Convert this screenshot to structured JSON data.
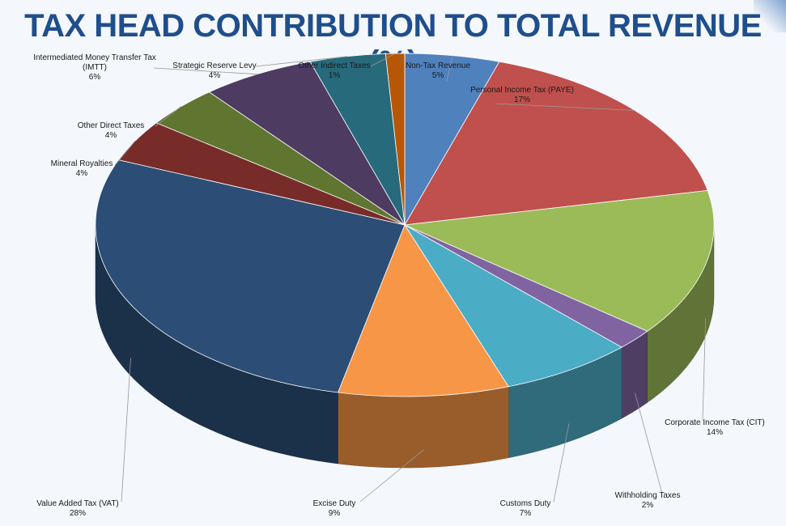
{
  "chart_data": {
    "type": "pie",
    "title": "TAX HEAD CONTRIBUTION TO TOTAL REVENUE (%)",
    "unit": "%",
    "slices": [
      {
        "name": "Non-Tax Revenue",
        "value": 5,
        "label": "5%",
        "color": "#4f81bd"
      },
      {
        "name": "Personal Income Tax (PAYE)",
        "value": 17,
        "label": "17%",
        "color": "#c0504d"
      },
      {
        "name": "Corporate Income Tax (CIT)",
        "value": 14,
        "label": "14%",
        "color": "#9bbb59"
      },
      {
        "name": "Withholding Taxes",
        "value": 2,
        "label": "2%",
        "color": "#8064a2"
      },
      {
        "name": "Customs Duty",
        "value": 7,
        "label": "7%",
        "color": "#4bacc6"
      },
      {
        "name": "Excise Duty",
        "value": 9,
        "label": "9%",
        "color": "#f79646"
      },
      {
        "name": "Value Added Tax (VAT)",
        "value": 28,
        "label": "28%",
        "color": "#2c4d75"
      },
      {
        "name": "Mineral Royalties",
        "value": 4,
        "label": "4%",
        "color": "#772c2a"
      },
      {
        "name": "Other Direct Taxes",
        "value": 4,
        "label": "4%",
        "color": "#5f7530"
      },
      {
        "name": "Intermediated Money Transfer Tax (IMTT)",
        "value": 6,
        "label": "6%",
        "color": "#4d3b62"
      },
      {
        "name": "Strategic Reserve Levy",
        "value": 4,
        "label": "4%",
        "color": "#276a7c"
      },
      {
        "name": "Other Indirect Taxes",
        "value": 1,
        "label": "1%",
        "color": "#b65708"
      }
    ]
  }
}
